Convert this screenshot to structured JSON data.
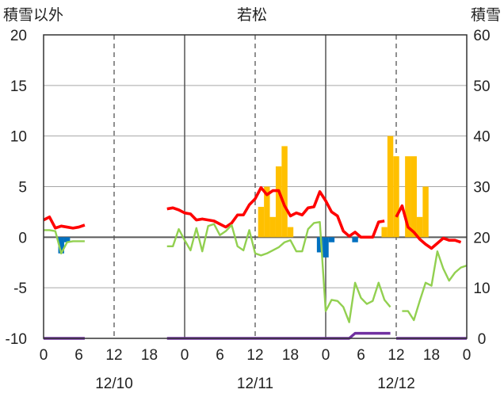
{
  "chart_data": {
    "type": "bar+line",
    "title": "若松",
    "left_axis_label": "積雪以外",
    "right_axis_label": "積雪",
    "left_axis": {
      "min": -10,
      "max": 20,
      "ticks": [
        20,
        15,
        10,
        5,
        0,
        -5,
        -10
      ],
      "tick_labels": [
        "20",
        "15",
        "10",
        "5",
        "0",
        "-5",
        "-10"
      ]
    },
    "right_axis": {
      "min": 0,
      "max": 60,
      "ticks": [
        60,
        50,
        40,
        30,
        20,
        10,
        0
      ],
      "tick_labels": [
        "60",
        "50",
        "40",
        "30",
        "20",
        "10",
        "0"
      ]
    },
    "x_axis": {
      "hours_total": 72,
      "tick_hours": [
        0,
        6,
        12,
        18,
        24,
        30,
        36,
        42,
        48,
        54,
        60,
        66,
        72
      ],
      "tick_labels": [
        "0",
        "6",
        "12",
        "18",
        "0",
        "6",
        "12",
        "18",
        "0",
        "6",
        "12",
        "18",
        "0"
      ],
      "day_labels": [
        "12/10",
        "12/11",
        "12/12"
      ],
      "day_label_hours": [
        12,
        36,
        60
      ],
      "grid_solid_hours": [
        24,
        48
      ],
      "grid_dashed_hours": [
        12,
        36,
        60
      ]
    },
    "grid": true,
    "colors": {
      "orange_bar": "#ffc000",
      "blue_bar": "#0070c0",
      "red_line": "#ff0000",
      "green_line": "#92d050",
      "purple_line": "#7030a0",
      "zero_line": "#595959"
    },
    "series": [
      {
        "kind": "bar",
        "axis": "left",
        "color": "orange_bar",
        "points": [
          [
            36,
            3
          ],
          [
            37,
            5
          ],
          [
            38,
            2
          ],
          [
            39,
            7
          ],
          [
            40,
            9
          ],
          [
            41,
            1
          ],
          [
            57,
            1
          ],
          [
            58,
            10
          ],
          [
            59,
            8
          ],
          [
            61,
            8
          ],
          [
            62,
            8
          ],
          [
            63,
            2
          ],
          [
            64,
            5
          ]
        ]
      },
      {
        "kind": "bar",
        "axis": "left",
        "color": "blue_bar",
        "points": [
          [
            2,
            -1.6
          ],
          [
            3,
            -0.5
          ],
          [
            46,
            -1.5
          ],
          [
            47,
            -2
          ],
          [
            48,
            -0.5
          ],
          [
            52,
            -0.5
          ]
        ]
      },
      {
        "kind": "line",
        "axis": "left",
        "color": "red_line",
        "segments": [
          [
            [
              0,
              1.7
            ],
            [
              1,
              2
            ],
            [
              2,
              0.9
            ],
            [
              3,
              1.1
            ],
            [
              4,
              1
            ],
            [
              5,
              0.9
            ],
            [
              6,
              1
            ],
            [
              7,
              1.2
            ]
          ],
          [
            [
              21,
              2.8
            ],
            [
              22,
              2.9
            ],
            [
              23,
              2.7
            ],
            [
              24,
              2.4
            ],
            [
              25,
              2.3
            ],
            [
              26,
              1.7
            ],
            [
              27,
              1.8
            ],
            [
              28,
              1.7
            ],
            [
              29,
              1.6
            ],
            [
              30,
              1.3
            ],
            [
              31,
              1
            ],
            [
              32,
              1.4
            ],
            [
              33,
              2.2
            ],
            [
              34,
              2.2
            ],
            [
              35,
              3.2
            ],
            [
              36,
              3.8
            ],
            [
              37,
              4.9
            ],
            [
              38,
              4.2
            ],
            [
              39,
              4.6
            ],
            [
              40,
              4.6
            ],
            [
              41,
              3.1
            ],
            [
              42,
              2.1
            ],
            [
              43,
              2.4
            ],
            [
              44,
              2.2
            ],
            [
              45,
              2.9
            ],
            [
              46,
              3
            ],
            [
              47,
              4.5
            ],
            [
              48,
              3.6
            ],
            [
              49,
              2.5
            ],
            [
              50,
              2.1
            ],
            [
              51,
              0.6
            ],
            [
              52,
              0.1
            ],
            [
              53,
              0.5
            ],
            [
              54,
              0
            ],
            [
              55,
              0
            ],
            [
              56,
              0
            ],
            [
              57,
              1.5
            ],
            [
              58,
              1.6
            ]
          ],
          [
            [
              60,
              2
            ],
            [
              61,
              3.1
            ],
            [
              62,
              1
            ],
            [
              63,
              0.5
            ],
            [
              64,
              -0.2
            ],
            [
              65,
              -0.7
            ],
            [
              66,
              -1.1
            ],
            [
              67,
              -0.6
            ],
            [
              68,
              -0.1
            ],
            [
              69,
              -0.3
            ],
            [
              70,
              -0.3
            ],
            [
              71,
              -0.5
            ]
          ]
        ]
      },
      {
        "kind": "line",
        "axis": "left",
        "color": "green_line",
        "segments": [
          [
            [
              0,
              0.7
            ],
            [
              1,
              0.7
            ],
            [
              2,
              0.6
            ],
            [
              3,
              -1.6
            ],
            [
              4,
              -0.5
            ],
            [
              5,
              -0.4
            ],
            [
              6,
              -0.4
            ],
            [
              7,
              -0.4
            ]
          ],
          [
            [
              21,
              -0.9
            ],
            [
              22,
              -0.9
            ],
            [
              23,
              0.8
            ],
            [
              24,
              -0.3
            ],
            [
              25,
              -1.3
            ],
            [
              26,
              0.9
            ],
            [
              27,
              -1.4
            ],
            [
              28,
              1.1
            ],
            [
              29,
              1.3
            ],
            [
              30,
              0.2
            ],
            [
              31,
              0.6
            ],
            [
              32,
              1.2
            ],
            [
              33,
              -0.9
            ],
            [
              34,
              -1.3
            ],
            [
              35,
              0.7
            ],
            [
              36,
              -1.6
            ],
            [
              37,
              -1.8
            ],
            [
              38,
              -1.6
            ],
            [
              39,
              -1.3
            ],
            [
              40,
              -1
            ],
            [
              41,
              -0.5
            ],
            [
              42,
              -0.3
            ],
            [
              43,
              -1.4
            ],
            [
              44,
              -1.4
            ],
            [
              45,
              0.8
            ],
            [
              46,
              1.4
            ],
            [
              47,
              1.5
            ],
            [
              48,
              -7.3
            ],
            [
              49,
              -6.2
            ],
            [
              50,
              -6.3
            ],
            [
              51,
              -6.9
            ],
            [
              52,
              -8.4
            ],
            [
              53,
              -4.5
            ],
            [
              54,
              -6
            ],
            [
              55,
              -6.6
            ],
            [
              56,
              -6.3
            ],
            [
              57,
              -4.5
            ],
            [
              58,
              -6.2
            ],
            [
              59,
              -6.9
            ]
          ],
          [
            [
              61,
              -7.3
            ],
            [
              62,
              -7.3
            ],
            [
              63,
              -8.2
            ],
            [
              64,
              -6.3
            ],
            [
              65,
              -4.5
            ],
            [
              66,
              -4.8
            ],
            [
              67,
              -1.4
            ],
            [
              68,
              -3.1
            ],
            [
              69,
              -4.3
            ],
            [
              70,
              -3.5
            ],
            [
              71,
              -3
            ],
            [
              72,
              -2.8
            ]
          ]
        ]
      },
      {
        "kind": "line",
        "axis": "right",
        "color": "purple_line",
        "segments": [
          [
            [
              0,
              0
            ],
            [
              7,
              0
            ]
          ],
          [
            [
              21,
              0
            ],
            [
              52,
              0
            ],
            [
              53,
              1
            ],
            [
              59,
              1
            ]
          ],
          [
            [
              60,
              0
            ],
            [
              72,
              0
            ]
          ]
        ]
      }
    ]
  }
}
